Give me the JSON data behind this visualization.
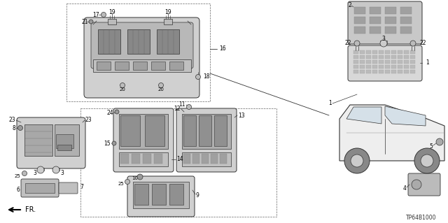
{
  "bg_color": "#ffffff",
  "diagram_code": "TP64B1000",
  "fr_label": "FR.",
  "fig_width": 6.4,
  "fig_height": 3.19,
  "dpi": 100,
  "line_color": "#333333",
  "part_color": "#e8e8e8",
  "dark_part": "#bbbbbb"
}
